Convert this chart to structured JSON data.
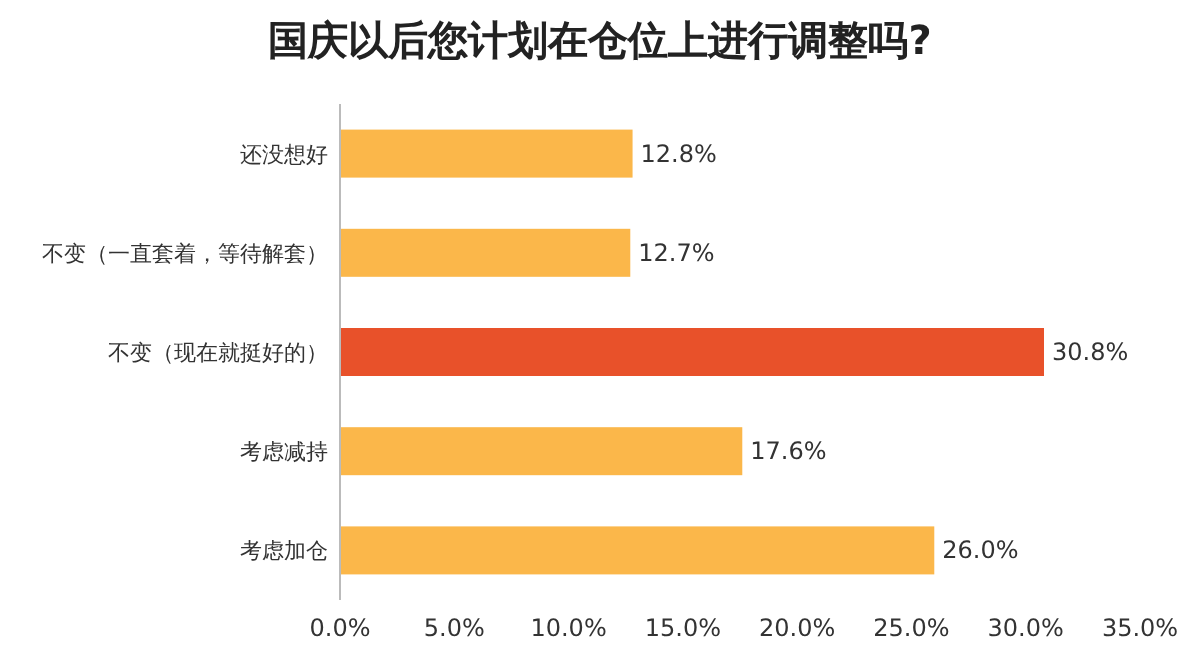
{
  "chart_data": {
    "type": "bar",
    "orientation": "horizontal",
    "title": "国庆以后您计划在仓位上进行调整吗?",
    "categories": [
      "还没想好",
      "不变（一直套着，等待解套）",
      "不变（现在就挺好的）",
      "考虑减持",
      "考虑加仓"
    ],
    "values": [
      12.8,
      12.7,
      30.8,
      17.6,
      26.0
    ],
    "colors": [
      "#fbb74a",
      "#fbb74a",
      "#e8512a",
      "#fbb74a",
      "#fbb74a"
    ],
    "value_labels": [
      "12.8%",
      "12.7%",
      "30.8%",
      "17.6%",
      "26.0%"
    ],
    "xlim": [
      0,
      35
    ],
    "xticks": [
      {
        "value": 0,
        "label": "0.0%"
      },
      {
        "value": 5,
        "label": "5.0%"
      },
      {
        "value": 10,
        "label": "10.0%"
      },
      {
        "value": 15,
        "label": "15.0%"
      },
      {
        "value": 20,
        "label": "20.0%"
      },
      {
        "value": 25,
        "label": "25.0%"
      },
      {
        "value": 30,
        "label": "30.0%"
      },
      {
        "value": 35,
        "label": "35.0%"
      }
    ],
    "grid": false
  }
}
